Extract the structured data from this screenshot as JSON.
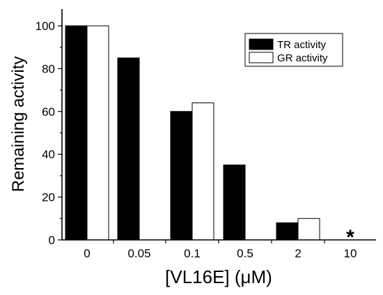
{
  "chart_data": {
    "type": "bar",
    "title": "",
    "xlabel": "[VL16E] (μM)",
    "ylabel": "Remaining activity",
    "categories": [
      "0",
      "0.05",
      "0.1",
      "0.5",
      "2",
      "10"
    ],
    "series": [
      {
        "name": "TR activity",
        "values": [
          100,
          85,
          60,
          35,
          8,
          null
        ],
        "color": "#000000"
      },
      {
        "name": "GR activity",
        "values": [
          100,
          null,
          64,
          null,
          10,
          null
        ],
        "color": "#ffffff"
      }
    ],
    "ylim": [
      0,
      108
    ],
    "yticks": [
      0,
      20,
      40,
      60,
      80,
      100
    ],
    "grid": false,
    "legend_position": "top-right",
    "annotations": [
      {
        "category": "10",
        "text": "*"
      }
    ]
  }
}
